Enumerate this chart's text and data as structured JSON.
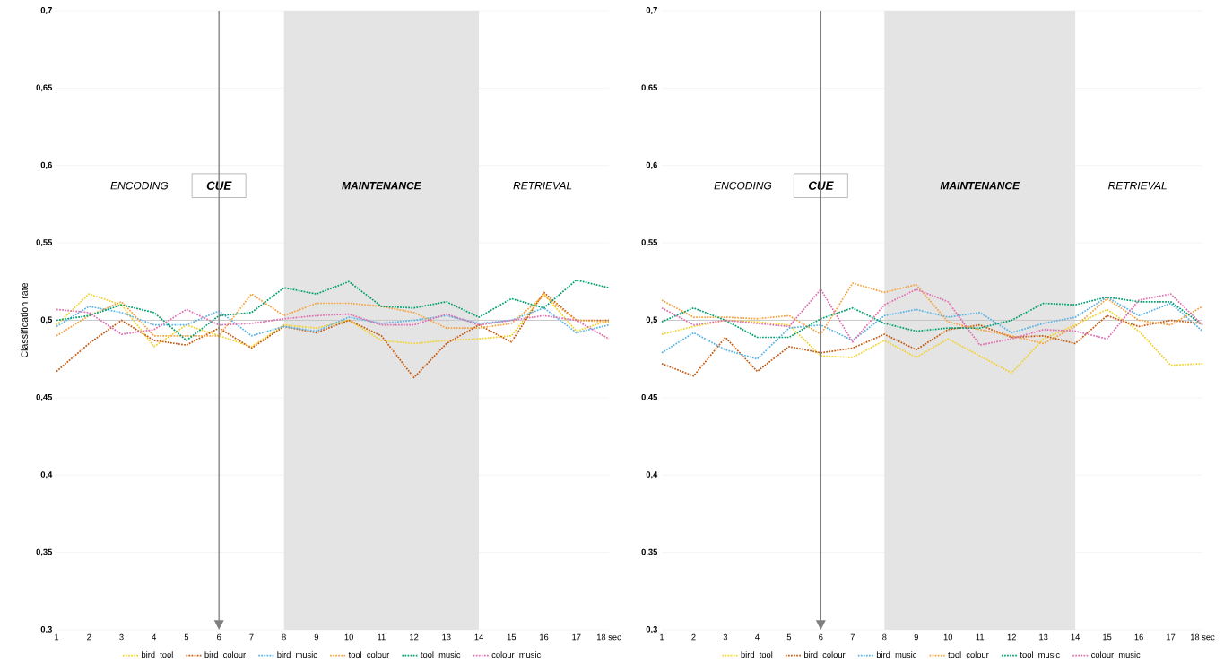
{
  "chart_data": [
    {
      "type": "line",
      "ylabel": "Classification rate",
      "x": [
        1,
        2,
        3,
        4,
        5,
        6,
        7,
        8,
        9,
        10,
        11,
        12,
        13,
        14,
        15,
        16,
        17,
        18
      ],
      "xlim": [
        1,
        18
      ],
      "ylim": [
        0.3,
        0.7
      ],
      "xticks": [
        1,
        2,
        3,
        4,
        5,
        6,
        7,
        8,
        9,
        10,
        11,
        12,
        13,
        14,
        15,
        16,
        17,
        {
          "value": 18,
          "label": "18 sec"
        }
      ],
      "yticks": [
        {
          "value": 0.3,
          "label": "0,3"
        },
        {
          "value": 0.35,
          "label": "0,35"
        },
        {
          "value": 0.4,
          "label": "0,4"
        },
        {
          "value": 0.45,
          "label": "0,45"
        },
        {
          "value": 0.5,
          "label": "0,5"
        },
        {
          "value": 0.55,
          "label": "0,55"
        },
        {
          "value": 0.6,
          "label": "0,6"
        },
        {
          "value": 0.65,
          "label": "0,65"
        },
        {
          "value": 0.7,
          "label": "0,7"
        }
      ],
      "grid": "y",
      "legend": "bottom",
      "marker": "none",
      "line_style": "dotted",
      "series": [
        {
          "name": "bird_tool",
          "color": "#f2d22e",
          "values": [
            0.497,
            0.517,
            0.51,
            0.483,
            0.497,
            0.49,
            0.483,
            0.497,
            0.495,
            0.5,
            0.487,
            0.485,
            0.487,
            0.488,
            0.49,
            0.517,
            0.493,
            0.5
          ]
        },
        {
          "name": "bird_colour",
          "color": "#c55a11",
          "values": [
            0.467,
            0.485,
            0.5,
            0.487,
            0.484,
            0.495,
            0.482,
            0.496,
            0.492,
            0.5,
            0.49,
            0.463,
            0.485,
            0.497,
            0.486,
            0.518,
            0.5,
            0.5
          ]
        },
        {
          "name": "bird_music",
          "color": "#5bb4e5",
          "values": [
            0.496,
            0.509,
            0.505,
            0.497,
            0.497,
            0.506,
            0.49,
            0.496,
            0.493,
            0.502,
            0.498,
            0.5,
            0.503,
            0.498,
            0.5,
            0.508,
            0.492,
            0.497
          ]
        },
        {
          "name": "tool_colour",
          "color": "#f5a340",
          "values": [
            0.49,
            0.503,
            0.512,
            0.49,
            0.49,
            0.49,
            0.517,
            0.503,
            0.511,
            0.511,
            0.509,
            0.505,
            0.495,
            0.495,
            0.498,
            0.516,
            0.5,
            0.499
          ]
        },
        {
          "name": "tool_music",
          "color": "#00a070",
          "values": [
            0.5,
            0.503,
            0.51,
            0.505,
            0.487,
            0.503,
            0.505,
            0.521,
            0.517,
            0.525,
            0.509,
            0.508,
            0.512,
            0.502,
            0.514,
            0.508,
            0.526,
            0.521
          ]
        },
        {
          "name": "colour_music",
          "color": "#e070b0",
          "values": [
            0.507,
            0.505,
            0.491,
            0.494,
            0.507,
            0.497,
            0.498,
            0.501,
            0.503,
            0.504,
            0.497,
            0.497,
            0.504,
            0.497,
            0.5,
            0.503,
            0.5,
            0.488
          ]
        }
      ],
      "ref_lines": [
        {
          "axis": "x",
          "value": 6,
          "label": "CUE",
          "color": "#7f7f7f"
        },
        {
          "axis": "y",
          "value": 0.5,
          "color": "#bfbfbf"
        }
      ],
      "bands": [
        {
          "axis": "x",
          "from": 8,
          "to": 14,
          "label": "MAINTENANCE",
          "color": "#e4e4e4"
        }
      ],
      "annotations": [
        "ENCODING",
        "RETRIEVAL"
      ]
    },
    {
      "type": "line",
      "x": [
        1,
        2,
        3,
        4,
        5,
        6,
        7,
        8,
        9,
        10,
        11,
        12,
        13,
        14,
        15,
        16,
        17,
        18
      ],
      "xlim": [
        1,
        18
      ],
      "ylim": [
        0.3,
        0.7
      ],
      "xticks": [
        1,
        2,
        3,
        4,
        5,
        6,
        7,
        8,
        9,
        10,
        11,
        12,
        13,
        14,
        15,
        16,
        17,
        {
          "value": 18,
          "label": "18 sec"
        }
      ],
      "yticks": [
        {
          "value": 0.3,
          "label": "0,3"
        },
        {
          "value": 0.35,
          "label": "0,35"
        },
        {
          "value": 0.4,
          "label": "0,4"
        },
        {
          "value": 0.45,
          "label": "0,45"
        },
        {
          "value": 0.5,
          "label": "0,5"
        },
        {
          "value": 0.55,
          "label": "0,55"
        },
        {
          "value": 0.6,
          "label": "0,6"
        },
        {
          "value": 0.65,
          "label": "0,65"
        },
        {
          "value": 0.7,
          "label": "0,7"
        }
      ],
      "grid": "y",
      "legend": "bottom",
      "marker": "none",
      "line_style": "dotted",
      "series": [
        {
          "name": "bird_tool",
          "color": "#f2d22e",
          "values": [
            0.491,
            0.496,
            0.5,
            0.499,
            0.497,
            0.477,
            0.476,
            0.487,
            0.476,
            0.488,
            0.477,
            0.466,
            0.488,
            0.497,
            0.507,
            0.493,
            0.471,
            0.472
          ]
        },
        {
          "name": "bird_colour",
          "color": "#c55a11",
          "values": [
            0.472,
            0.464,
            0.489,
            0.467,
            0.483,
            0.479,
            0.482,
            0.491,
            0.481,
            0.494,
            0.497,
            0.489,
            0.49,
            0.485,
            0.503,
            0.496,
            0.5,
            0.498
          ]
        },
        {
          "name": "bird_music",
          "color": "#5bb4e5",
          "values": [
            0.479,
            0.492,
            0.481,
            0.475,
            0.495,
            0.497,
            0.487,
            0.503,
            0.507,
            0.502,
            0.505,
            0.492,
            0.498,
            0.502,
            0.515,
            0.503,
            0.511,
            0.493
          ]
        },
        {
          "name": "tool_colour",
          "color": "#f5a340",
          "values": [
            0.513,
            0.502,
            0.502,
            0.501,
            0.503,
            0.491,
            0.524,
            0.518,
            0.523,
            0.499,
            0.494,
            0.49,
            0.485,
            0.496,
            0.514,
            0.5,
            0.497,
            0.509
          ]
        },
        {
          "name": "tool_music",
          "color": "#00a070",
          "values": [
            0.499,
            0.508,
            0.5,
            0.489,
            0.489,
            0.501,
            0.508,
            0.498,
            0.493,
            0.495,
            0.495,
            0.5,
            0.511,
            0.51,
            0.515,
            0.512,
            0.512,
            0.497
          ]
        },
        {
          "name": "colour_music",
          "color": "#e070b0",
          "values": [
            0.508,
            0.497,
            0.5,
            0.498,
            0.496,
            0.52,
            0.486,
            0.51,
            0.52,
            0.512,
            0.484,
            0.488,
            0.494,
            0.493,
            0.488,
            0.513,
            0.517,
            0.497
          ]
        }
      ],
      "ref_lines": [
        {
          "axis": "x",
          "value": 6,
          "label": "CUE",
          "color": "#7f7f7f"
        },
        {
          "axis": "y",
          "value": 0.5,
          "color": "#bfbfbf"
        }
      ],
      "bands": [
        {
          "axis": "x",
          "from": 8,
          "to": 14,
          "label": "MAINTENANCE",
          "color": "#e4e4e4"
        }
      ],
      "annotations": [
        "ENCODING",
        "RETRIEVAL"
      ]
    }
  ]
}
